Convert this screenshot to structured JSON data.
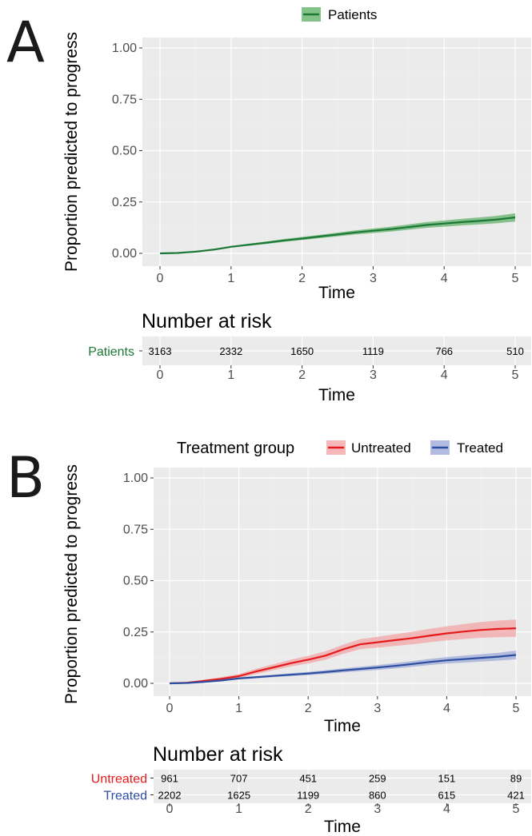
{
  "panels": {
    "a": {
      "letter": "A"
    },
    "b": {
      "letter": "B"
    }
  },
  "chart_data": [
    {
      "type": "line",
      "xlabel": "Time",
      "ylabel": "Proportion predicted to progress",
      "xlim": [
        0,
        5
      ],
      "ylim": [
        0,
        1
      ],
      "xticks": [
        "0",
        "1",
        "2",
        "3",
        "4",
        "5"
      ],
      "yticks": [
        "0.00",
        "0.25",
        "0.50",
        "0.75",
        "1.00"
      ],
      "grid": true,
      "legend_position": "top",
      "series": [
        {
          "name": "Patients",
          "color": "#1b7837",
          "band_color": "#5aae61",
          "x": [
            0,
            0.25,
            0.5,
            0.75,
            1.0,
            1.25,
            1.5,
            1.75,
            2.0,
            2.25,
            2.5,
            2.75,
            3.0,
            3.25,
            3.5,
            3.75,
            4.0,
            4.25,
            4.5,
            4.75,
            5.0
          ],
          "y": [
            0,
            0.002,
            0.008,
            0.018,
            0.032,
            0.042,
            0.052,
            0.063,
            0.072,
            0.082,
            0.092,
            0.102,
            0.11,
            0.118,
            0.128,
            0.138,
            0.145,
            0.152,
            0.158,
            0.165,
            0.175
          ],
          "lower": [
            0,
            0.001,
            0.006,
            0.015,
            0.028,
            0.037,
            0.046,
            0.056,
            0.065,
            0.074,
            0.083,
            0.092,
            0.099,
            0.106,
            0.115,
            0.124,
            0.13,
            0.136,
            0.141,
            0.147,
            0.155
          ],
          "upper": [
            0,
            0.003,
            0.01,
            0.021,
            0.036,
            0.047,
            0.058,
            0.07,
            0.08,
            0.09,
            0.101,
            0.112,
            0.121,
            0.13,
            0.141,
            0.152,
            0.16,
            0.168,
            0.175,
            0.183,
            0.195
          ]
        }
      ],
      "risk_table": {
        "title": "Number at risk",
        "xlabel": "Time",
        "times": [
          "0",
          "1",
          "2",
          "3",
          "4",
          "5"
        ],
        "rows": [
          {
            "label": "Patients",
            "color": "#1b7837",
            "values": [
              "3163",
              "2332",
              "1650",
              "1119",
              "766",
              "510"
            ]
          }
        ]
      }
    },
    {
      "type": "line",
      "xlabel": "Time",
      "ylabel": "Proportion predicted to progress",
      "xlim": [
        0,
        5
      ],
      "ylim": [
        0,
        1
      ],
      "xticks": [
        "0",
        "1",
        "2",
        "3",
        "4",
        "5"
      ],
      "yticks": [
        "0.00",
        "0.25",
        "0.50",
        "0.75",
        "1.00"
      ],
      "grid": true,
      "legend_position": "top",
      "legend_title": "Treatment group",
      "series": [
        {
          "name": "Untreated",
          "color": "#e41a1c",
          "band_color": "#f4a0a1",
          "x": [
            0,
            0.25,
            0.5,
            0.75,
            1.0,
            1.25,
            1.5,
            1.75,
            2.0,
            2.25,
            2.5,
            2.75,
            3.0,
            3.25,
            3.5,
            3.75,
            4.0,
            4.25,
            4.5,
            4.75,
            5.0
          ],
          "y": [
            0,
            0.003,
            0.012,
            0.022,
            0.035,
            0.058,
            0.078,
            0.098,
            0.115,
            0.135,
            0.165,
            0.19,
            0.2,
            0.21,
            0.22,
            0.232,
            0.243,
            0.252,
            0.26,
            0.265,
            0.268
          ],
          "lower": [
            0,
            0.001,
            0.007,
            0.015,
            0.026,
            0.046,
            0.064,
            0.082,
            0.097,
            0.115,
            0.143,
            0.166,
            0.174,
            0.182,
            0.19,
            0.2,
            0.209,
            0.216,
            0.222,
            0.225,
            0.227
          ],
          "upper": [
            0,
            0.006,
            0.018,
            0.03,
            0.045,
            0.071,
            0.093,
            0.115,
            0.134,
            0.156,
            0.188,
            0.215,
            0.227,
            0.239,
            0.251,
            0.265,
            0.278,
            0.289,
            0.299,
            0.306,
            0.31
          ]
        },
        {
          "name": "Treated",
          "color": "#2c4ea0",
          "band_color": "#9aa6d6",
          "x": [
            0,
            0.25,
            0.5,
            0.75,
            1.0,
            1.25,
            1.5,
            1.75,
            2.0,
            2.25,
            2.5,
            2.75,
            3.0,
            3.25,
            3.5,
            3.75,
            4.0,
            4.25,
            4.5,
            4.75,
            5.0
          ],
          "y": [
            0,
            0.002,
            0.007,
            0.014,
            0.024,
            0.03,
            0.036,
            0.042,
            0.048,
            0.055,
            0.063,
            0.07,
            0.077,
            0.085,
            0.094,
            0.104,
            0.112,
            0.118,
            0.124,
            0.13,
            0.138
          ],
          "lower": [
            0,
            0.001,
            0.005,
            0.011,
            0.019,
            0.025,
            0.03,
            0.035,
            0.04,
            0.046,
            0.053,
            0.059,
            0.065,
            0.072,
            0.08,
            0.089,
            0.096,
            0.101,
            0.106,
            0.111,
            0.117
          ],
          "upper": [
            0,
            0.003,
            0.009,
            0.017,
            0.029,
            0.036,
            0.042,
            0.049,
            0.056,
            0.064,
            0.073,
            0.081,
            0.089,
            0.098,
            0.108,
            0.119,
            0.128,
            0.135,
            0.142,
            0.149,
            0.159
          ]
        }
      ],
      "risk_table": {
        "title": "Number at risk",
        "xlabel": "Time",
        "times": [
          "0",
          "1",
          "2",
          "3",
          "4",
          "5"
        ],
        "rows": [
          {
            "label": "Untreated",
            "color": "#e41a1c",
            "values": [
              "961",
              "707",
              "451",
              "259",
              "151",
              "89"
            ]
          },
          {
            "label": "Treated",
            "color": "#2c4ea0",
            "values": [
              "2202",
              "1625",
              "1199",
              "860",
              "615",
              "421"
            ]
          }
        ]
      }
    }
  ]
}
